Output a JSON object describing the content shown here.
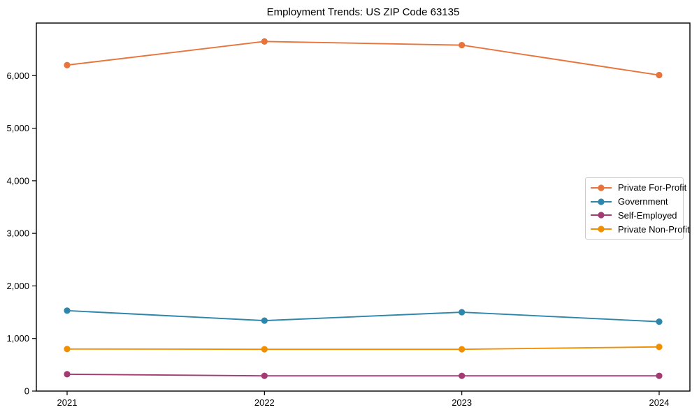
{
  "title": "Employment Trends: US ZIP Code 63135",
  "chart_data": {
    "type": "line",
    "x": [
      2021,
      2022,
      2023,
      2024
    ],
    "series": [
      {
        "name": "Private For-Profit",
        "color": "#E8743B",
        "values": [
          6200,
          6650,
          6580,
          6010
        ]
      },
      {
        "name": "Government",
        "color": "#2E86AB",
        "values": [
          1530,
          1340,
          1500,
          1320
        ]
      },
      {
        "name": "Self-Employed",
        "color": "#A23B72",
        "values": [
          320,
          290,
          290,
          290
        ]
      },
      {
        "name": "Private Non-Profit",
        "color": "#F18F01",
        "values": [
          800,
          795,
          795,
          840
        ]
      }
    ],
    "title": "Employment Trends: US ZIP Code 63135",
    "xlabel": "",
    "ylabel": "",
    "ylim": [
      0,
      7000
    ],
    "yticks": [
      0,
      1000,
      2000,
      3000,
      4000,
      5000,
      6000
    ],
    "grid": false,
    "legend_position": "center right",
    "marker": "o"
  }
}
